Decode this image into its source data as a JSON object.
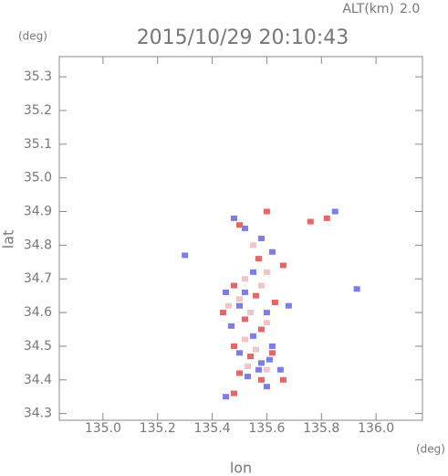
{
  "chart_data": {
    "type": "scatter",
    "title": "2015/10/29 20:10:43",
    "altitude_label": "ALT(km)",
    "altitude": {
      "value": 2,
      "label": "2.0"
    },
    "xlabel": "lon",
    "ylabel": "lat",
    "x_unit": "(deg)",
    "y_unit": "(deg)",
    "xlim": [
      134.84,
      136.17
    ],
    "ylim": [
      34.28,
      35.36
    ],
    "xticks": [
      {
        "value": 135,
        "label": "135.0"
      },
      135.2,
      135.4,
      135.6,
      135.8,
      {
        "value": 136,
        "label": "136.0"
      }
    ],
    "yticks": [
      34.3,
      34.4,
      34.5,
      34.6,
      34.7,
      34.8,
      34.9,
      {
        "value": 35,
        "label": "35.0"
      },
      35.1,
      35.2,
      35.3
    ],
    "series": [
      {
        "color": "#f2c4c4",
        "x": [
          135.55,
          135.6,
          135.52,
          135.58,
          135.5,
          135.54,
          135.6,
          135.52,
          135.56,
          135.6,
          135.53,
          135.62,
          135.46
        ],
        "y": [
          34.8,
          34.72,
          34.7,
          34.68,
          34.64,
          34.6,
          34.57,
          34.52,
          34.49,
          34.43,
          34.44,
          34.78,
          34.62
        ]
      },
      {
        "color": "#7c7cf2",
        "x": [
          135.48,
          135.52,
          135.58,
          135.62,
          135.55,
          135.45,
          135.5,
          135.6,
          135.47,
          135.55,
          135.62,
          135.5,
          135.58,
          135.65,
          135.53,
          135.6,
          135.45,
          135.85,
          135.3,
          135.93,
          135.68,
          135.52,
          135.57,
          135.61
        ],
        "y": [
          34.88,
          34.85,
          34.82,
          34.78,
          34.72,
          34.66,
          34.62,
          34.6,
          34.56,
          34.53,
          34.5,
          34.48,
          34.45,
          34.43,
          34.41,
          34.38,
          34.35,
          34.9,
          34.77,
          34.67,
          34.62,
          34.66,
          34.43,
          34.46
        ]
      },
      {
        "color": "#f06262",
        "x": [
          135.5,
          135.6,
          135.76,
          135.57,
          135.66,
          135.48,
          135.56,
          135.63,
          135.52,
          135.44,
          135.58,
          135.48,
          135.54,
          135.62,
          135.5,
          135.58,
          135.48,
          135.82,
          135.66
        ],
        "y": [
          34.86,
          34.9,
          34.87,
          34.76,
          34.74,
          34.68,
          34.65,
          34.63,
          34.58,
          34.6,
          34.55,
          34.5,
          34.47,
          34.48,
          34.42,
          34.4,
          34.36,
          34.88,
          34.4
        ]
      }
    ]
  }
}
